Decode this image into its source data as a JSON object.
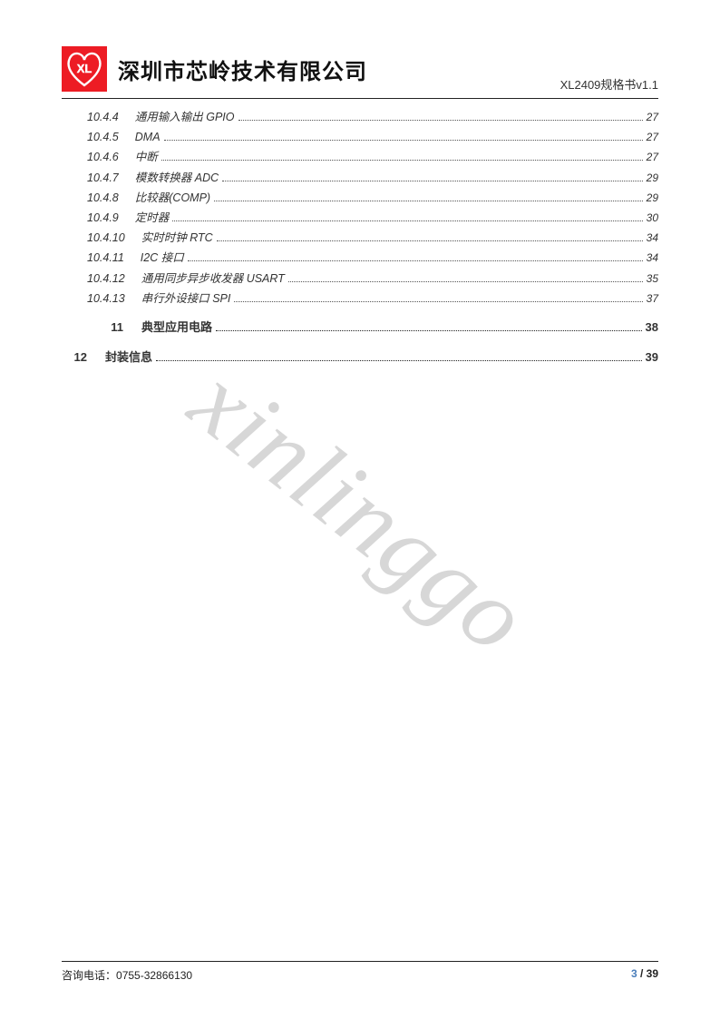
{
  "header": {
    "company": "深圳市芯岭技术有限公司",
    "doc_version": "XL2409规格书v1.1",
    "logo_text": "XL",
    "logo_bg": "#ed1c24",
    "logo_stroke": "#ffffff"
  },
  "watermark": "xinlinggo",
  "toc": {
    "sub_items": [
      {
        "num": "10.4.4",
        "title": "通用输入输出 GPIO",
        "page": "27"
      },
      {
        "num": "10.4.5",
        "title": "DMA",
        "page": "27"
      },
      {
        "num": "10.4.6",
        "title": "中断",
        "page": "27"
      },
      {
        "num": "10.4.7",
        "title": "模数转换器 ADC",
        "page": "29"
      },
      {
        "num": "10.4.8",
        "title": "比较器(COMP)",
        "page": "29"
      },
      {
        "num": "10.4.9",
        "title": "定时器",
        "page": "30"
      },
      {
        "num": "10.4.10",
        "title": "实时时钟 RTC",
        "page": "34"
      },
      {
        "num": "10.4.11",
        "title": "I2C 接口",
        "page": "34"
      },
      {
        "num": "10.4.12",
        "title": "通用同步异步收发器 USART",
        "page": "35"
      },
      {
        "num": "10.4.13",
        "title": "串行外设接口 SPI",
        "page": "37"
      }
    ],
    "main_items": [
      {
        "num": "11",
        "title": "典型应用电路",
        "page": "38",
        "indent": 44
      },
      {
        "num": "12",
        "title": "封装信息",
        "page": "39",
        "indent": 4
      }
    ]
  },
  "footer": {
    "phone_label": "咨询电话：",
    "phone": "0755-32866130",
    "current_page": "3",
    "sep": " / ",
    "total_pages": "39",
    "current_color": "#4a7ebb"
  },
  "colors": {
    "text": "#333333",
    "rule": "#222222",
    "leader": "#555555",
    "watermark": "#b8b8b8"
  }
}
